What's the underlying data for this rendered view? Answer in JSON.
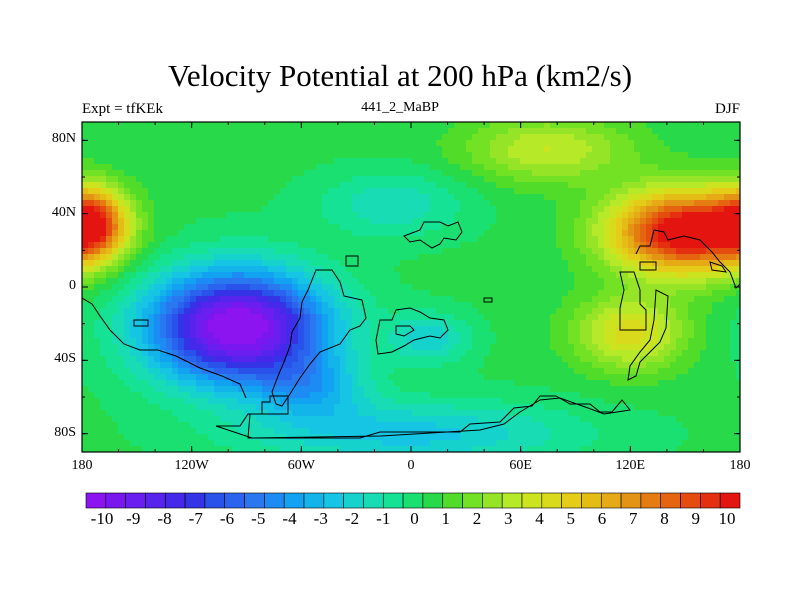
{
  "title": "Velocity Potential at 200 hPa (km2/s)",
  "left_string": "Expt = tfKEk",
  "center_string": "441_2_MaBP",
  "right_string": "DJF",
  "y_axis": {
    "ticks": [
      {
        "label": "80N",
        "lat": 80
      },
      {
        "label": "40N",
        "lat": 40
      },
      {
        "label": "0",
        "lat": 0
      },
      {
        "label": "40S",
        "lat": -40
      },
      {
        "label": "80S",
        "lat": -80
      }
    ]
  },
  "x_axis": {
    "ticks": [
      {
        "label": "180",
        "lon": -180
      },
      {
        "label": "120W",
        "lon": -120
      },
      {
        "label": "60W",
        "lon": -60
      },
      {
        "label": "0",
        "lon": 0
      },
      {
        "label": "60E",
        "lon": 60
      },
      {
        "label": "120E",
        "lon": 120
      },
      {
        "label": "180",
        "lon": 180
      }
    ]
  },
  "colorbar": {
    "labels": [
      "-10",
      "-9",
      "-8",
      "-7",
      "-6",
      "-5",
      "-4",
      "-3",
      "-2",
      "-1",
      "0",
      "1",
      "2",
      "3",
      "4",
      "5",
      "6",
      "7",
      "8",
      "9",
      "10"
    ],
    "colors": [
      "#8c14f0",
      "#7818ee",
      "#6a1ef0",
      "#5624ec",
      "#4628ea",
      "#3434e6",
      "#2852ea",
      "#2a64ee",
      "#2a78f0",
      "#1c8cf4",
      "#12a2f2",
      "#12b4ea",
      "#16c4e4",
      "#16d2cc",
      "#18dcb4",
      "#16e296",
      "#1ae072",
      "#28da4a",
      "#50dc28",
      "#74e224",
      "#96e428",
      "#b6ea28",
      "#cce420",
      "#dada1c",
      "#e4cc18",
      "#e4bc16",
      "#e6aa16",
      "#e49414",
      "#e47c12",
      "#e46410",
      "#e44c10",
      "#e43010",
      "#e41410"
    ],
    "range": [
      -10.5,
      10.5
    ]
  },
  "field": {
    "units": "km2/s",
    "background": 0.5,
    "centers": [
      {
        "lon": -95,
        "lat": -22,
        "amp": -11.5,
        "sx": 48,
        "sy": 30
      },
      {
        "lon": -55,
        "lat": -55,
        "amp": -3.0,
        "sx": 30,
        "sy": 18
      },
      {
        "lon": 10,
        "lat": -28,
        "amp": -2.5,
        "sx": 22,
        "sy": 14
      },
      {
        "lon": 150,
        "lat": 30,
        "amp": 11.0,
        "sx": 40,
        "sy": 22
      },
      {
        "lon": -175,
        "lat": 35,
        "amp": 7.5,
        "sx": 18,
        "sy": 18
      },
      {
        "lon": 75,
        "lat": 75,
        "amp": 3.0,
        "sx": 45,
        "sy": 18
      },
      {
        "lon": 120,
        "lat": -25,
        "amp": 4.0,
        "sx": 30,
        "sy": 20
      },
      {
        "lon": -10,
        "lat": 45,
        "amp": -2.0,
        "sx": 40,
        "sy": 18
      },
      {
        "lon": 0,
        "lat": -80,
        "amp": -3.0,
        "sx": 90,
        "sy": 18
      }
    ]
  }
}
